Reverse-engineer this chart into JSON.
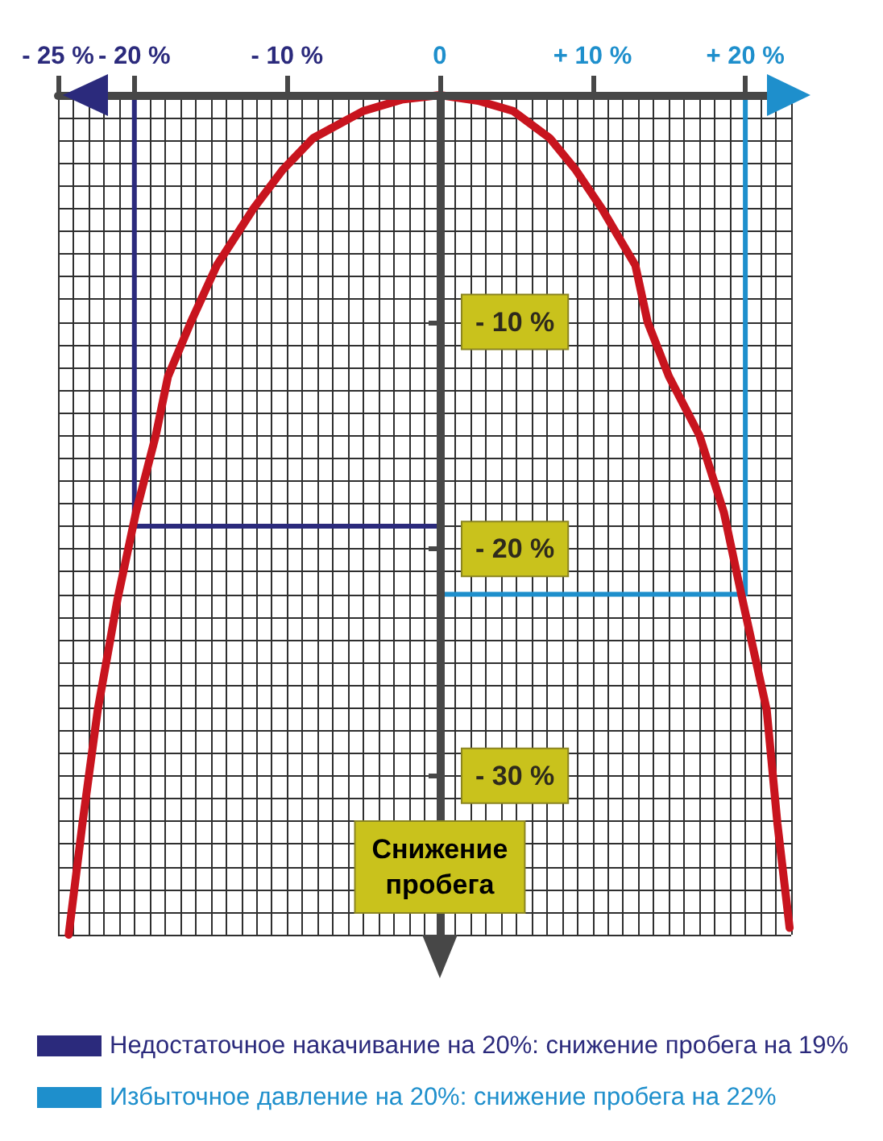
{
  "chart_data": {
    "type": "line",
    "xlim": [
      -25,
      23
    ],
    "xticks": [
      {
        "value": -25,
        "label": "- 25 %"
      },
      {
        "value": -20,
        "label": "- 20 %"
      },
      {
        "value": -10,
        "label": "- 10 %"
      },
      0,
      {
        "value": 10,
        "label": "+ 10 %"
      },
      {
        "value": 20,
        "label": "+ 20 %"
      }
    ],
    "ylim": [
      -37,
      0
    ],
    "yticks": [
      {
        "value": -10,
        "label": "- 10 %"
      },
      {
        "value": -20,
        "label": "- 20 %"
      },
      {
        "value": -30,
        "label": "- 30 %"
      }
    ],
    "ylabel": "Снижение пробега",
    "series": [
      {
        "color": "#c8141e",
        "x": [
          -24.3,
          -23.4,
          -22.4,
          -21.1,
          -19.9,
          -18.6,
          -17.8,
          -16.3,
          -14.6,
          -12.2,
          -10.3,
          -8.3,
          -5.0,
          -2.5,
          0,
          2.5,
          4.8,
          7.2,
          8.9,
          10.6,
          12.8,
          13.6,
          15.0,
          17.0,
          18.6,
          19.8,
          21.4,
          22.1,
          22.9
        ],
        "values": [
          -37,
          -32.1,
          -27.1,
          -22.2,
          -18.4,
          -15,
          -12.4,
          -10,
          -7.5,
          -5,
          -3.3,
          -1.9,
          -0.7,
          -0.2,
          0,
          -0.25,
          -0.7,
          -1.9,
          -3.3,
          -5,
          -7.5,
          -10,
          -12.4,
          -15,
          -18.4,
          -22.2,
          -27.1,
          -32.1,
          -36.7
        ]
      },
      {
        "name": "Недостаточное накачивание на 20%: снижение пробега на 19%",
        "color": "#2b2a7c",
        "x": [
          -20,
          -20,
          0
        ],
        "values": [
          0,
          -19,
          -19
        ]
      },
      {
        "name": "Избыточное давление на 20%: снижение пробега на 22%",
        "color": "#1e8fcc",
        "x": [
          20,
          20,
          0
        ],
        "values": [
          0,
          -22,
          -22
        ]
      }
    ],
    "marker": "none",
    "line_style": "solid",
    "grid": true,
    "legend": "bottom left"
  }
}
